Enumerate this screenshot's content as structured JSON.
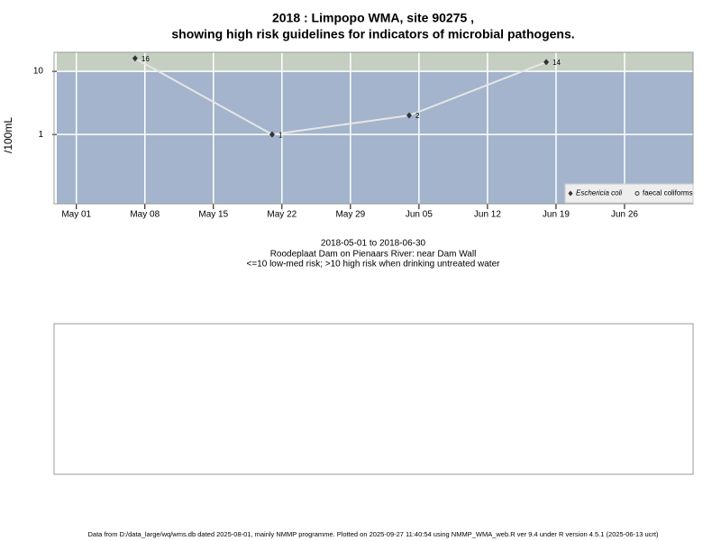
{
  "chart_data": {
    "type": "line",
    "title": "2018 : Limpopo WMA, site 90275 ,",
    "subtitle": "showing high risk guidelines for indicators of microbial pathogens.",
    "y_label": "/100mL",
    "x_label": "2018-05-01 to 2018-06-30",
    "annotations": [
      "Roodeplaat Dam on Pienaars River: near Dam Wall",
      "<=10 low-med risk; >10 high risk when drinking untreated water"
    ],
    "caption": "Data from D:/data_large/wq/wms.db dated 2025-08-01, mainly NMMP programme. Plotted on 2025-09-27 11:40:54 using NMMP_WMA_web.R ver 9.4 under R version 4.5.1 (2025-06-13 ucrt)",
    "x": [
      "2018-05-07",
      "2018-05-21",
      "2018-06-04",
      "2018-06-18"
    ],
    "series": [
      {
        "name": "Eschericia coli",
        "color": "#333333",
        "values": [
          16,
          1,
          2,
          14
        ]
      },
      {
        "name": "faecal coliforms",
        "color": "#333333",
        "values": [
          null,
          null,
          null,
          null
        ]
      }
    ],
    "line_color": "#e6e6e6",
    "threshold": 10,
    "high_color": "#c5cfc1",
    "low_color": "#a3b4cc",
    "log_y": true,
    "grid": true,
    "legend": "bottom-right",
    "xlim": [
      "2018-04-29",
      "2018-07-03"
    ],
    "xticks": [
      {
        "value": "2018-05-01",
        "label": "May 01"
      },
      {
        "value": "2018-05-08",
        "label": "May 08"
      },
      {
        "value": "2018-05-15",
        "label": "May 15"
      },
      {
        "value": "2018-05-22",
        "label": "May 22"
      },
      {
        "value": "2018-05-29",
        "label": "May 29"
      },
      {
        "value": "2018-06-05",
        "label": "Jun 05"
      },
      {
        "value": "2018-06-12",
        "label": "Jun 12"
      },
      {
        "value": "2018-06-19",
        "label": "Jun 19"
      },
      {
        "value": "2018-06-26",
        "label": "Jun 26"
      }
    ],
    "ylim": [
      0.08,
      20
    ],
    "yticks": [
      1,
      10
    ]
  }
}
